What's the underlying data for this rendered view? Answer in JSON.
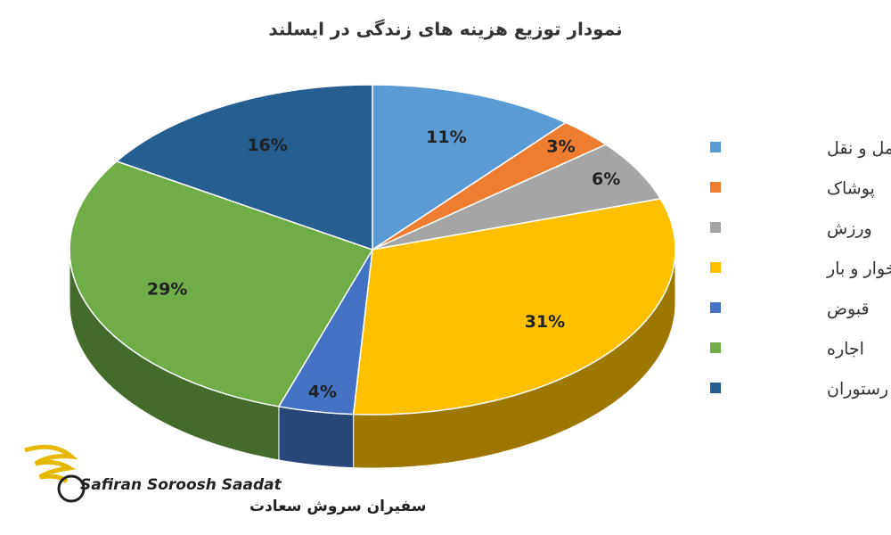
{
  "chart_data": {
    "type": "pie3d",
    "title": "نمودار توزیع هزینه های زندگی در ایسلند",
    "categories": [
      "حمل و نقل",
      "پوشاک",
      "ورزش",
      "خوار و بار",
      "قبوض",
      "اجاره",
      "رستوران"
    ],
    "values": [
      11,
      3,
      6,
      31,
      4,
      29,
      16
    ],
    "value_labels": [
      "11%",
      "3%",
      "6%",
      "31%",
      "4%",
      "29%",
      "16%"
    ],
    "colors": [
      "#5b9bd5",
      "#ed7d31",
      "#a5a5a5",
      "#ffc000",
      "#4472c4",
      "#70ad47",
      "#255e91"
    ],
    "legend": "right"
  },
  "logo": {
    "latin": "Safiran Soroosh Saadat",
    "persian": "سفیران سروش سعادت"
  }
}
